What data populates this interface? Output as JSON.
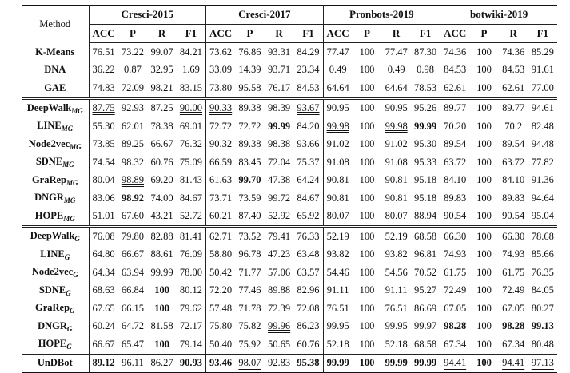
{
  "header": {
    "method_label": "Method",
    "datasets": [
      "Cresci-2015",
      "Cresci-2017",
      "Pronbots-2019",
      "botwiki-2019"
    ],
    "metrics": [
      "ACC",
      "P",
      "R",
      "F1"
    ]
  },
  "rows": [
    {
      "name": "K-Means",
      "sub": "",
      "group": 0,
      "cells": [
        {
          "v": "76.51"
        },
        {
          "v": "73.22"
        },
        {
          "v": "99.07"
        },
        {
          "v": "84.21"
        },
        {
          "v": "73.62"
        },
        {
          "v": "76.86"
        },
        {
          "v": "93.31"
        },
        {
          "v": "84.29"
        },
        {
          "v": "77.47"
        },
        {
          "v": "100"
        },
        {
          "v": "77.47"
        },
        {
          "v": "87.30"
        },
        {
          "v": "74.36"
        },
        {
          "v": "100"
        },
        {
          "v": "74.36"
        },
        {
          "v": "85.29"
        }
      ]
    },
    {
      "name": "DNA",
      "sub": "",
      "group": 0,
      "cells": [
        {
          "v": "36.22"
        },
        {
          "v": "0.87"
        },
        {
          "v": "32.95"
        },
        {
          "v": "1.69"
        },
        {
          "v": "33.09"
        },
        {
          "v": "14.39"
        },
        {
          "v": "93.71"
        },
        {
          "v": "23.34"
        },
        {
          "v": "0.49"
        },
        {
          "v": "100"
        },
        {
          "v": "0.49"
        },
        {
          "v": "0.98"
        },
        {
          "v": "84.53"
        },
        {
          "v": "100"
        },
        {
          "v": "84.53"
        },
        {
          "v": "91.61"
        }
      ]
    },
    {
      "name": "GAE",
      "sub": "",
      "group": 0,
      "cells": [
        {
          "v": "74.83"
        },
        {
          "v": "72.09"
        },
        {
          "v": "98.21"
        },
        {
          "v": "83.15"
        },
        {
          "v": "73.80"
        },
        {
          "v": "95.58"
        },
        {
          "v": "76.17"
        },
        {
          "v": "84.53"
        },
        {
          "v": "64.64"
        },
        {
          "v": "100"
        },
        {
          "v": "64.64"
        },
        {
          "v": "78.53"
        },
        {
          "v": "62.61"
        },
        {
          "v": "100"
        },
        {
          "v": "62.61"
        },
        {
          "v": "77.00"
        }
      ]
    },
    {
      "name": "DeepWalk",
      "sub": "MG",
      "group": 1,
      "cells": [
        {
          "v": "87.75",
          "f": "du"
        },
        {
          "v": "92.93"
        },
        {
          "v": "87.25"
        },
        {
          "v": "90.00",
          "f": "du"
        },
        {
          "v": "90.33",
          "f": "du"
        },
        {
          "v": "89.38"
        },
        {
          "v": "98.39"
        },
        {
          "v": "93.67",
          "f": "du"
        },
        {
          "v": "90.95"
        },
        {
          "v": "100"
        },
        {
          "v": "90.95"
        },
        {
          "v": "95.26"
        },
        {
          "v": "89.77"
        },
        {
          "v": "100"
        },
        {
          "v": "89.77"
        },
        {
          "v": "94.61"
        }
      ]
    },
    {
      "name": "LINE",
      "sub": "MG",
      "group": 1,
      "cells": [
        {
          "v": "55.30"
        },
        {
          "v": "62.01"
        },
        {
          "v": "78.38"
        },
        {
          "v": "69.01"
        },
        {
          "v": "72.72"
        },
        {
          "v": "72.72"
        },
        {
          "v": "99.99",
          "f": "b"
        },
        {
          "v": "84.20"
        },
        {
          "v": "99.98",
          "f": "du"
        },
        {
          "v": "100"
        },
        {
          "v": "99.98",
          "f": "du"
        },
        {
          "v": "99.99",
          "f": "b"
        },
        {
          "v": "70.20"
        },
        {
          "v": "100"
        },
        {
          "v": "70.2"
        },
        {
          "v": "82.48"
        }
      ]
    },
    {
      "name": "Node2vec",
      "sub": "MG",
      "group": 1,
      "cells": [
        {
          "v": "73.85"
        },
        {
          "v": "89.25"
        },
        {
          "v": "66.67"
        },
        {
          "v": "76.32"
        },
        {
          "v": "90.32"
        },
        {
          "v": "89.38"
        },
        {
          "v": "98.38"
        },
        {
          "v": "93.66"
        },
        {
          "v": "91.02"
        },
        {
          "v": "100"
        },
        {
          "v": "91.02"
        },
        {
          "v": "95.30"
        },
        {
          "v": "89.54"
        },
        {
          "v": "100"
        },
        {
          "v": "89.54"
        },
        {
          "v": "94.48"
        }
      ]
    },
    {
      "name": "SDNE",
      "sub": "MG",
      "group": 1,
      "cells": [
        {
          "v": "74.54"
        },
        {
          "v": "98.32"
        },
        {
          "v": "60.76"
        },
        {
          "v": "75.09"
        },
        {
          "v": "66.59"
        },
        {
          "v": "83.45"
        },
        {
          "v": "72.04"
        },
        {
          "v": "75.37"
        },
        {
          "v": "91.08"
        },
        {
          "v": "100"
        },
        {
          "v": "91.08"
        },
        {
          "v": "95.33"
        },
        {
          "v": "63.72"
        },
        {
          "v": "100"
        },
        {
          "v": "63.72"
        },
        {
          "v": "77.82"
        }
      ]
    },
    {
      "name": "GraRep",
      "sub": "MG",
      "group": 1,
      "cells": [
        {
          "v": "80.04"
        },
        {
          "v": "98.89",
          "f": "du"
        },
        {
          "v": "69.20"
        },
        {
          "v": "81.43"
        },
        {
          "v": "61.63"
        },
        {
          "v": "99.70",
          "f": "b"
        },
        {
          "v": "47.38"
        },
        {
          "v": "64.24"
        },
        {
          "v": "90.81"
        },
        {
          "v": "100"
        },
        {
          "v": "90.81"
        },
        {
          "v": "95.18"
        },
        {
          "v": "84.10"
        },
        {
          "v": "100"
        },
        {
          "v": "84.10"
        },
        {
          "v": "91.36"
        }
      ]
    },
    {
      "name": "DNGR",
      "sub": "MG",
      "group": 1,
      "cells": [
        {
          "v": "83.06"
        },
        {
          "v": "98.92",
          "f": "b"
        },
        {
          "v": "74.00"
        },
        {
          "v": "84.67"
        },
        {
          "v": "73.71"
        },
        {
          "v": "73.59"
        },
        {
          "v": "99.72"
        },
        {
          "v": "84.67"
        },
        {
          "v": "90.81"
        },
        {
          "v": "100"
        },
        {
          "v": "90.81"
        },
        {
          "v": "95.18"
        },
        {
          "v": "89.83"
        },
        {
          "v": "100"
        },
        {
          "v": "89.83"
        },
        {
          "v": "94.64"
        }
      ]
    },
    {
      "name": "HOPE",
      "sub": "MG",
      "group": 1,
      "cells": [
        {
          "v": "51.01"
        },
        {
          "v": "67.60"
        },
        {
          "v": "43.21"
        },
        {
          "v": "52.72"
        },
        {
          "v": "60.21"
        },
        {
          "v": "87.40"
        },
        {
          "v": "52.92"
        },
        {
          "v": "65.92"
        },
        {
          "v": "80.07"
        },
        {
          "v": "100"
        },
        {
          "v": "80.07"
        },
        {
          "v": "88.94"
        },
        {
          "v": "90.54"
        },
        {
          "v": "100"
        },
        {
          "v": "90.54"
        },
        {
          "v": "95.04"
        }
      ]
    },
    {
      "name": "DeepWalk",
      "sub": "G",
      "group": 2,
      "cells": [
        {
          "v": "76.08"
        },
        {
          "v": "79.80"
        },
        {
          "v": "82.88"
        },
        {
          "v": "81.41"
        },
        {
          "v": "62.71"
        },
        {
          "v": "73.52"
        },
        {
          "v": "79.41"
        },
        {
          "v": "76.33"
        },
        {
          "v": "52.19"
        },
        {
          "v": "100"
        },
        {
          "v": "52.19"
        },
        {
          "v": "68.58"
        },
        {
          "v": "66.30"
        },
        {
          "v": "100"
        },
        {
          "v": "66.30"
        },
        {
          "v": "78.68"
        }
      ]
    },
    {
      "name": "LINE",
      "sub": "G",
      "group": 2,
      "cells": [
        {
          "v": "64.80"
        },
        {
          "v": "66.67"
        },
        {
          "v": "88.61"
        },
        {
          "v": "76.09"
        },
        {
          "v": "58.80"
        },
        {
          "v": "96.78"
        },
        {
          "v": "47.23"
        },
        {
          "v": "63.48"
        },
        {
          "v": "93.82"
        },
        {
          "v": "100"
        },
        {
          "v": "93.82"
        },
        {
          "v": "96.81"
        },
        {
          "v": "74.93"
        },
        {
          "v": "100"
        },
        {
          "v": "74.93"
        },
        {
          "v": "85.66"
        }
      ]
    },
    {
      "name": "Node2vec",
      "sub": "G",
      "group": 2,
      "cells": [
        {
          "v": "64.34"
        },
        {
          "v": "63.94"
        },
        {
          "v": "99.99"
        },
        {
          "v": "78.00"
        },
        {
          "v": "50.42"
        },
        {
          "v": "71.77"
        },
        {
          "v": "57.06"
        },
        {
          "v": "63.57"
        },
        {
          "v": "54.46"
        },
        {
          "v": "100"
        },
        {
          "v": "54.56"
        },
        {
          "v": "70.52"
        },
        {
          "v": "61.75"
        },
        {
          "v": "100"
        },
        {
          "v": "61.75"
        },
        {
          "v": "76.35"
        }
      ]
    },
    {
      "name": "SDNE",
      "sub": "G",
      "group": 2,
      "cells": [
        {
          "v": "68.63"
        },
        {
          "v": "66.84"
        },
        {
          "v": "100",
          "f": "b"
        },
        {
          "v": "80.12"
        },
        {
          "v": "72.20"
        },
        {
          "v": "77.46"
        },
        {
          "v": "89.88"
        },
        {
          "v": "82.96"
        },
        {
          "v": "91.11"
        },
        {
          "v": "100"
        },
        {
          "v": "91.11"
        },
        {
          "v": "95.27"
        },
        {
          "v": "72.49"
        },
        {
          "v": "100"
        },
        {
          "v": "72.49"
        },
        {
          "v": "84.05"
        }
      ]
    },
    {
      "name": "GraRep",
      "sub": "G",
      "group": 2,
      "cells": [
        {
          "v": "67.65"
        },
        {
          "v": "66.15"
        },
        {
          "v": "100",
          "f": "b"
        },
        {
          "v": "79.62"
        },
        {
          "v": "57.48"
        },
        {
          "v": "71.78"
        },
        {
          "v": "72.39"
        },
        {
          "v": "72.08"
        },
        {
          "v": "76.51"
        },
        {
          "v": "100"
        },
        {
          "v": "76.51"
        },
        {
          "v": "86.69"
        },
        {
          "v": "67.05"
        },
        {
          "v": "100"
        },
        {
          "v": "67.05"
        },
        {
          "v": "80.27"
        }
      ]
    },
    {
      "name": "DNGR",
      "sub": "G",
      "group": 2,
      "cells": [
        {
          "v": "60.24"
        },
        {
          "v": "64.72"
        },
        {
          "v": "81.58"
        },
        {
          "v": "72.17"
        },
        {
          "v": "75.80"
        },
        {
          "v": "75.82"
        },
        {
          "v": "99.96",
          "f": "du"
        },
        {
          "v": "86.23"
        },
        {
          "v": "99.95"
        },
        {
          "v": "100"
        },
        {
          "v": "99.95"
        },
        {
          "v": "99.97"
        },
        {
          "v": "98.28",
          "f": "b"
        },
        {
          "v": "100"
        },
        {
          "v": "98.28",
          "f": "b"
        },
        {
          "v": "99.13",
          "f": "b"
        }
      ]
    },
    {
      "name": "HOPE",
      "sub": "G",
      "group": 2,
      "cells": [
        {
          "v": "66.67"
        },
        {
          "v": "65.47"
        },
        {
          "v": "100",
          "f": "b"
        },
        {
          "v": "79.14"
        },
        {
          "v": "50.40"
        },
        {
          "v": "75.92"
        },
        {
          "v": "50.65"
        },
        {
          "v": "60.76"
        },
        {
          "v": "52.18"
        },
        {
          "v": "100"
        },
        {
          "v": "52.18"
        },
        {
          "v": "68.58"
        },
        {
          "v": "67.34"
        },
        {
          "v": "100"
        },
        {
          "v": "67.34"
        },
        {
          "v": "80.48"
        }
      ]
    },
    {
      "name": "UnDBot",
      "sub": "",
      "group": 3,
      "cells": [
        {
          "v": "89.12",
          "f": "b"
        },
        {
          "v": "96.11"
        },
        {
          "v": "86.27"
        },
        {
          "v": "90.93",
          "f": "b"
        },
        {
          "v": "93.46",
          "f": "b"
        },
        {
          "v": "98.07",
          "f": "du"
        },
        {
          "v": "92.83"
        },
        {
          "v": "95.38",
          "f": "b"
        },
        {
          "v": "99.99",
          "f": "b"
        },
        {
          "v": "100",
          "f": "b"
        },
        {
          "v": "99.99",
          "f": "b"
        },
        {
          "v": "99.99",
          "f": "b"
        },
        {
          "v": "94.41",
          "f": "du"
        },
        {
          "v": "100",
          "f": "b"
        },
        {
          "v": "94.41",
          "f": "du"
        },
        {
          "v": "97.13",
          "f": "du"
        }
      ]
    }
  ]
}
